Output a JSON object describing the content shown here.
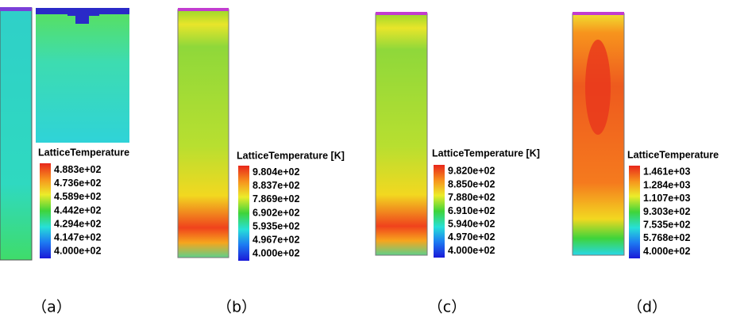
{
  "panels": [
    {
      "caption": "（a）",
      "legend": {
        "title": "LatticeTemperature",
        "labels": [
          "4.883e+02",
          "4.736e+02",
          "4.589e+02",
          "4.442e+02",
          "4.294e+02",
          "4.147e+02",
          "4.000e+02"
        ]
      }
    },
    {
      "caption": "（b）",
      "legend": {
        "title": "LatticeTemperature [K]",
        "labels": [
          "9.804e+02",
          "8.837e+02",
          "7.869e+02",
          "6.902e+02",
          "5.935e+02",
          "4.967e+02",
          "4.000e+02"
        ]
      }
    },
    {
      "caption": "（c）",
      "legend": {
        "title": "LatticeTemperature [K]",
        "labels": [
          "9.820e+02",
          "8.850e+02",
          "7.880e+02",
          "6.910e+02",
          "5.940e+02",
          "4.970e+02",
          "4.000e+02"
        ]
      }
    },
    {
      "caption": "（d）",
      "legend": {
        "title": "LatticeTemperature",
        "labels": [
          "1.461e+03",
          "1.284e+03",
          "1.107e+03",
          "9.303e+02",
          "7.535e+02",
          "5.768e+02",
          "4.000e+02"
        ]
      }
    }
  ]
}
